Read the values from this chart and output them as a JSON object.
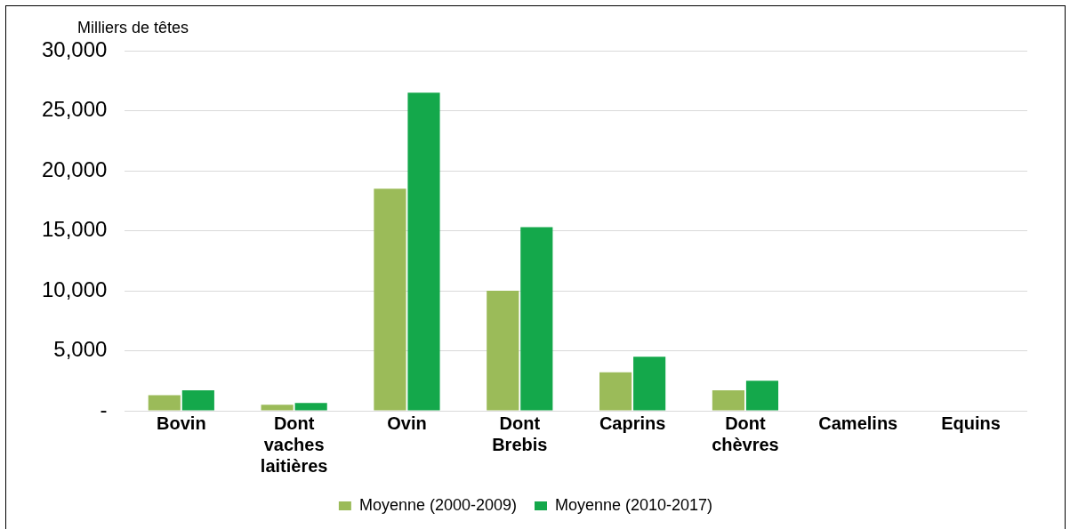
{
  "chart_data": {
    "type": "bar",
    "ylabel": "Milliers de têtes",
    "categories": [
      "Bovin",
      "Dont vaches laitières",
      "Ovin",
      "Dont Brebis",
      "Caprins",
      "Dont chèvres",
      "Camelins",
      "Equins"
    ],
    "series": [
      {
        "name": "Moyenne (2000-2009)",
        "color": "#9bbb59",
        "values": [
          1300,
          500,
          18500,
          10000,
          3200,
          1700,
          null,
          null
        ]
      },
      {
        "name": "Moyenne (2010-2017)",
        "color": "#14a84b",
        "values": [
          1700,
          650,
          26500,
          15300,
          4500,
          2500,
          null,
          null
        ]
      }
    ],
    "ylim": [
      0,
      30000
    ],
    "yticks": [
      {
        "value": 0,
        "label": "-"
      },
      {
        "value": 5000,
        "label": "5,000"
      },
      {
        "value": 10000,
        "label": "10,000"
      },
      {
        "value": 15000,
        "label": "15,000"
      },
      {
        "value": 20000,
        "label": "20,000"
      },
      {
        "value": 25000,
        "label": "25,000"
      },
      {
        "value": 30000,
        "label": "30,000"
      }
    ],
    "grid": "y",
    "legend": "bottom"
  }
}
